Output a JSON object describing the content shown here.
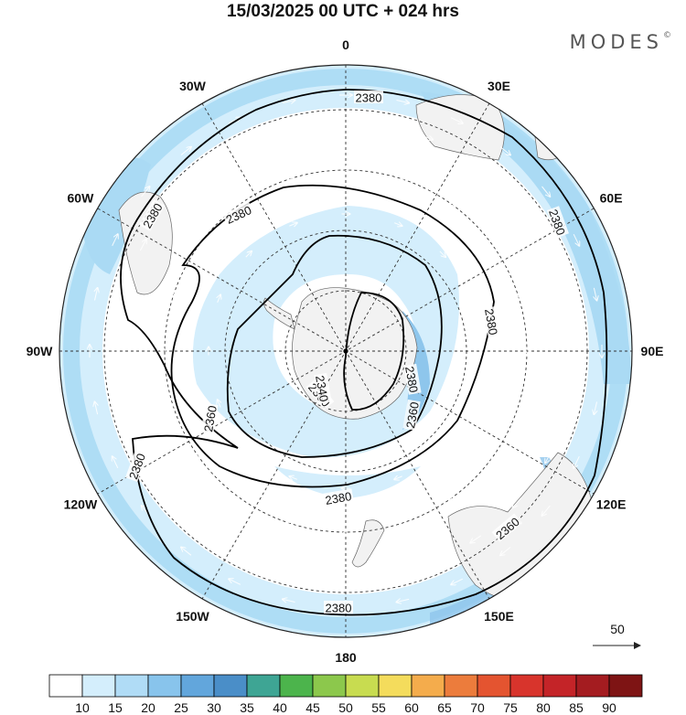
{
  "header": {
    "title": "15/03/2025  00 UTC  + 024 hrs",
    "brand": "MODES",
    "brand_mark": "©"
  },
  "map": {
    "projection": "south-polar-stereographic",
    "longitude_labels": [
      {
        "text": "0",
        "lon": 0
      },
      {
        "text": "30E",
        "lon": 30
      },
      {
        "text": "60E",
        "lon": 60
      },
      {
        "text": "90E",
        "lon": 90
      },
      {
        "text": "120E",
        "lon": 120
      },
      {
        "text": "150E",
        "lon": 150
      },
      {
        "text": "180",
        "lon": 180
      },
      {
        "text": "150W",
        "lon": -150
      },
      {
        "text": "120W",
        "lon": -120
      },
      {
        "text": "90W",
        "lon": -90
      },
      {
        "text": "60W",
        "lon": -60
      },
      {
        "text": "30W",
        "lon": -30
      }
    ],
    "contour_labels": [
      "2380",
      "2380",
      "2380",
      "2380",
      "2380",
      "2380",
      "2360",
      "2360",
      "2360",
      "2340",
      "2380",
      "2380",
      "2360",
      "2380"
    ],
    "vector_reference": {
      "value": "50"
    },
    "colors": {
      "land": "#f2f2f2",
      "band_15_20": "#d4eefc",
      "band_20_25": "#aadaf4",
      "band_25_30": "#8ec6ec"
    }
  },
  "colorbar": {
    "ticks": [
      "10",
      "15",
      "20",
      "25",
      "30",
      "35",
      "40",
      "45",
      "50",
      "55",
      "60",
      "65",
      "70",
      "75",
      "80",
      "85",
      "90"
    ],
    "colors": [
      "#ffffff",
      "#d4eefc",
      "#b0dcf6",
      "#88c4ec",
      "#62a6dc",
      "#4a8ec8",
      "#3ea594",
      "#4cb44c",
      "#8cc84c",
      "#c8dc50",
      "#f4dc5c",
      "#f4ac4c",
      "#ec7c3c",
      "#e45430",
      "#d8342c",
      "#c42428",
      "#a41c20",
      "#7e1414"
    ]
  }
}
